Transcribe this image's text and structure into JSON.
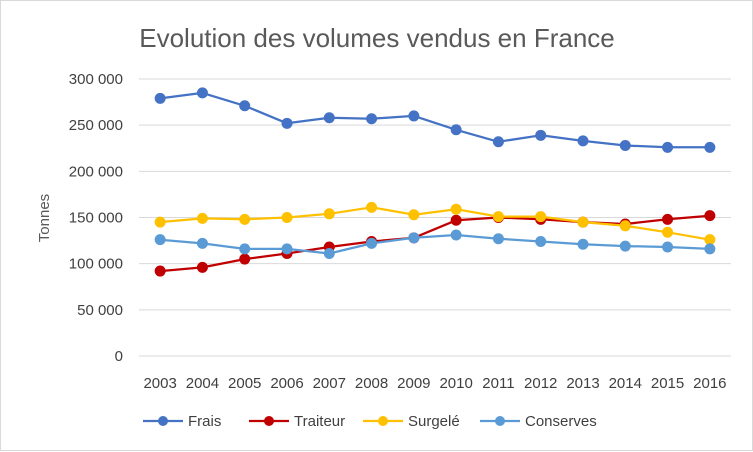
{
  "chart_data": {
    "type": "line",
    "title": "Evolution des volumes vendus en France",
    "xlabel": "",
    "ylabel": "Tonnes",
    "categories": [
      "2003",
      "2004",
      "2005",
      "2006",
      "2007",
      "2008",
      "2009",
      "2010",
      "2011",
      "2012",
      "2013",
      "2014",
      "2015",
      "2016"
    ],
    "ylim": [
      0,
      300000
    ],
    "yticks": [
      0,
      50000,
      100000,
      150000,
      200000,
      250000,
      300000
    ],
    "ytick_labels": [
      "0",
      "50 000",
      "100 000",
      "150 000",
      "200 000",
      "250 000",
      "300 000"
    ],
    "grid": true,
    "legend_position": "bottom",
    "series": [
      {
        "name": "Frais",
        "color": "#4472c4",
        "values": [
          279000,
          285000,
          271000,
          252000,
          258000,
          257000,
          260000,
          245000,
          232000,
          239000,
          233000,
          228000,
          226000,
          226000
        ]
      },
      {
        "name": "Traiteur",
        "color": "#c00000",
        "values": [
          92000,
          96000,
          105000,
          111000,
          118000,
          124000,
          128000,
          147000,
          150000,
          148000,
          145000,
          143000,
          148000,
          152000
        ]
      },
      {
        "name": "Surgelé",
        "color": "#ffc000",
        "values": [
          145000,
          149000,
          148000,
          150000,
          154000,
          161000,
          153000,
          159000,
          151000,
          151000,
          145000,
          141000,
          134000,
          126000
        ]
      },
      {
        "name": "Conserves",
        "color": "#5b9bd5",
        "values": [
          126000,
          122000,
          116000,
          116000,
          111000,
          122000,
          128000,
          131000,
          127000,
          124000,
          121000,
          119000,
          118000,
          116000
        ]
      }
    ]
  }
}
